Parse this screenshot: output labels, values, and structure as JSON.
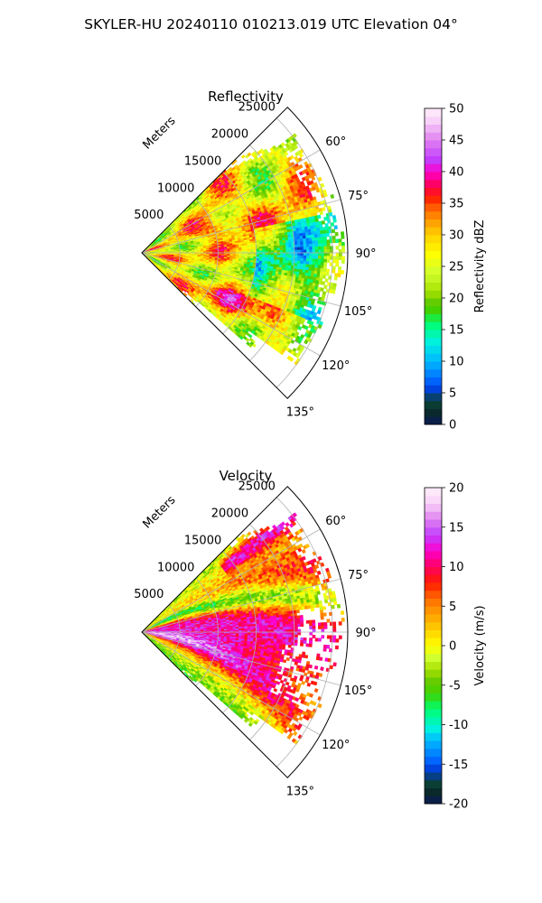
{
  "suptitle": "SKYLER-HU  20240110  010213.019 UTC Elevation 04°",
  "chart_data": [
    {
      "type": "heatmap",
      "title": "Reflectivity",
      "projection": "polar sector (PPI)",
      "theta_range_deg": [
        45,
        135
      ],
      "theta_ticks_deg": [
        60,
        75,
        90,
        105,
        120,
        135
      ],
      "theta_tick_labels": [
        "60°",
        "75°",
        "90°",
        "105°",
        "120°",
        "135°"
      ],
      "r_range_m": [
        0,
        27000
      ],
      "r_ticks_m": [
        5000,
        10000,
        15000,
        20000,
        25000
      ],
      "r_tick_labels": [
        "5000",
        "10000",
        "15000",
        "20000",
        "25000"
      ],
      "r_label": "Meters",
      "grid": true,
      "colorbar": {
        "label": "Reflectivity dBZ",
        "vmin": 0,
        "vmax": 50,
        "ticks": [
          0,
          5,
          10,
          15,
          20,
          25,
          30,
          35,
          40,
          45,
          50
        ],
        "stops": [
          [
            "#0a1a55",
            0
          ],
          [
            "#0a2a2a",
            2
          ],
          [
            "#0c4a3a",
            4
          ],
          [
            "#0033cc",
            5
          ],
          [
            "#0066ff",
            7
          ],
          [
            "#00b8ff",
            10
          ],
          [
            "#00f0e0",
            13
          ],
          [
            "#00ff70",
            16
          ],
          [
            "#40d000",
            18
          ],
          [
            "#66cc00",
            19.5
          ],
          [
            "#a6e000",
            21
          ],
          [
            "#d0ff30",
            24
          ],
          [
            "#ffff00",
            27
          ],
          [
            "#ffd000",
            30
          ],
          [
            "#ffa000",
            32
          ],
          [
            "#ff6a00",
            34
          ],
          [
            "#ff1a00",
            36
          ],
          [
            "#ff0060",
            38
          ],
          [
            "#ff00cc",
            40
          ],
          [
            "#c040ff",
            42
          ],
          [
            "#e080f0",
            45
          ],
          [
            "#f8d0f8",
            48
          ],
          [
            "#fff0fa",
            50
          ]
        ]
      },
      "field_description_values": {
        "near_range_dbz": 27,
        "core_band_dbz": 35,
        "far_east_dbz": 20
      }
    },
    {
      "type": "heatmap",
      "title": "Velocity",
      "projection": "polar sector (PPI)",
      "theta_range_deg": [
        45,
        135
      ],
      "theta_ticks_deg": [
        60,
        75,
        90,
        105,
        120,
        135
      ],
      "theta_tick_labels": [
        "60°",
        "75°",
        "90°",
        "105°",
        "120°",
        "135°"
      ],
      "r_range_m": [
        0,
        27000
      ],
      "r_ticks_m": [
        5000,
        10000,
        15000,
        20000,
        25000
      ],
      "r_tick_labels": [
        "5000",
        "10000",
        "15000",
        "20000",
        "25000"
      ],
      "r_label": "Meters",
      "grid": true,
      "colorbar": {
        "label": "Velocity (m/s)",
        "vmin": -20,
        "vmax": 20,
        "ticks": [
          -20,
          -15,
          -10,
          -5,
          0,
          5,
          10,
          15,
          20
        ],
        "stops": [
          [
            "#0a1a55",
            -20
          ],
          [
            "#0a2a2a",
            -18.5
          ],
          [
            "#0c4a3a",
            -17
          ],
          [
            "#0033cc",
            -16
          ],
          [
            "#0066ff",
            -14.5
          ],
          [
            "#00b8ff",
            -12
          ],
          [
            "#00f0e0",
            -10.5
          ],
          [
            "#00ff70",
            -8
          ],
          [
            "#40d000",
            -6
          ],
          [
            "#66cc00",
            -4.5
          ],
          [
            "#a6e000",
            -3
          ],
          [
            "#d0ff30",
            -1.5
          ],
          [
            "#ffff00",
            0
          ],
          [
            "#ffd000",
            2
          ],
          [
            "#ffa000",
            4
          ],
          [
            "#ff6a00",
            6
          ],
          [
            "#ff1a00",
            8
          ],
          [
            "#ff0060",
            10
          ],
          [
            "#ff00cc",
            12
          ],
          [
            "#c040ff",
            14
          ],
          [
            "#e080f0",
            16
          ],
          [
            "#f8d0f8",
            18
          ],
          [
            "#fff0fa",
            20
          ]
        ]
      },
      "field_description_values": {
        "inbound_min_ms": -11,
        "outbound_max_ms": 14
      }
    }
  ]
}
